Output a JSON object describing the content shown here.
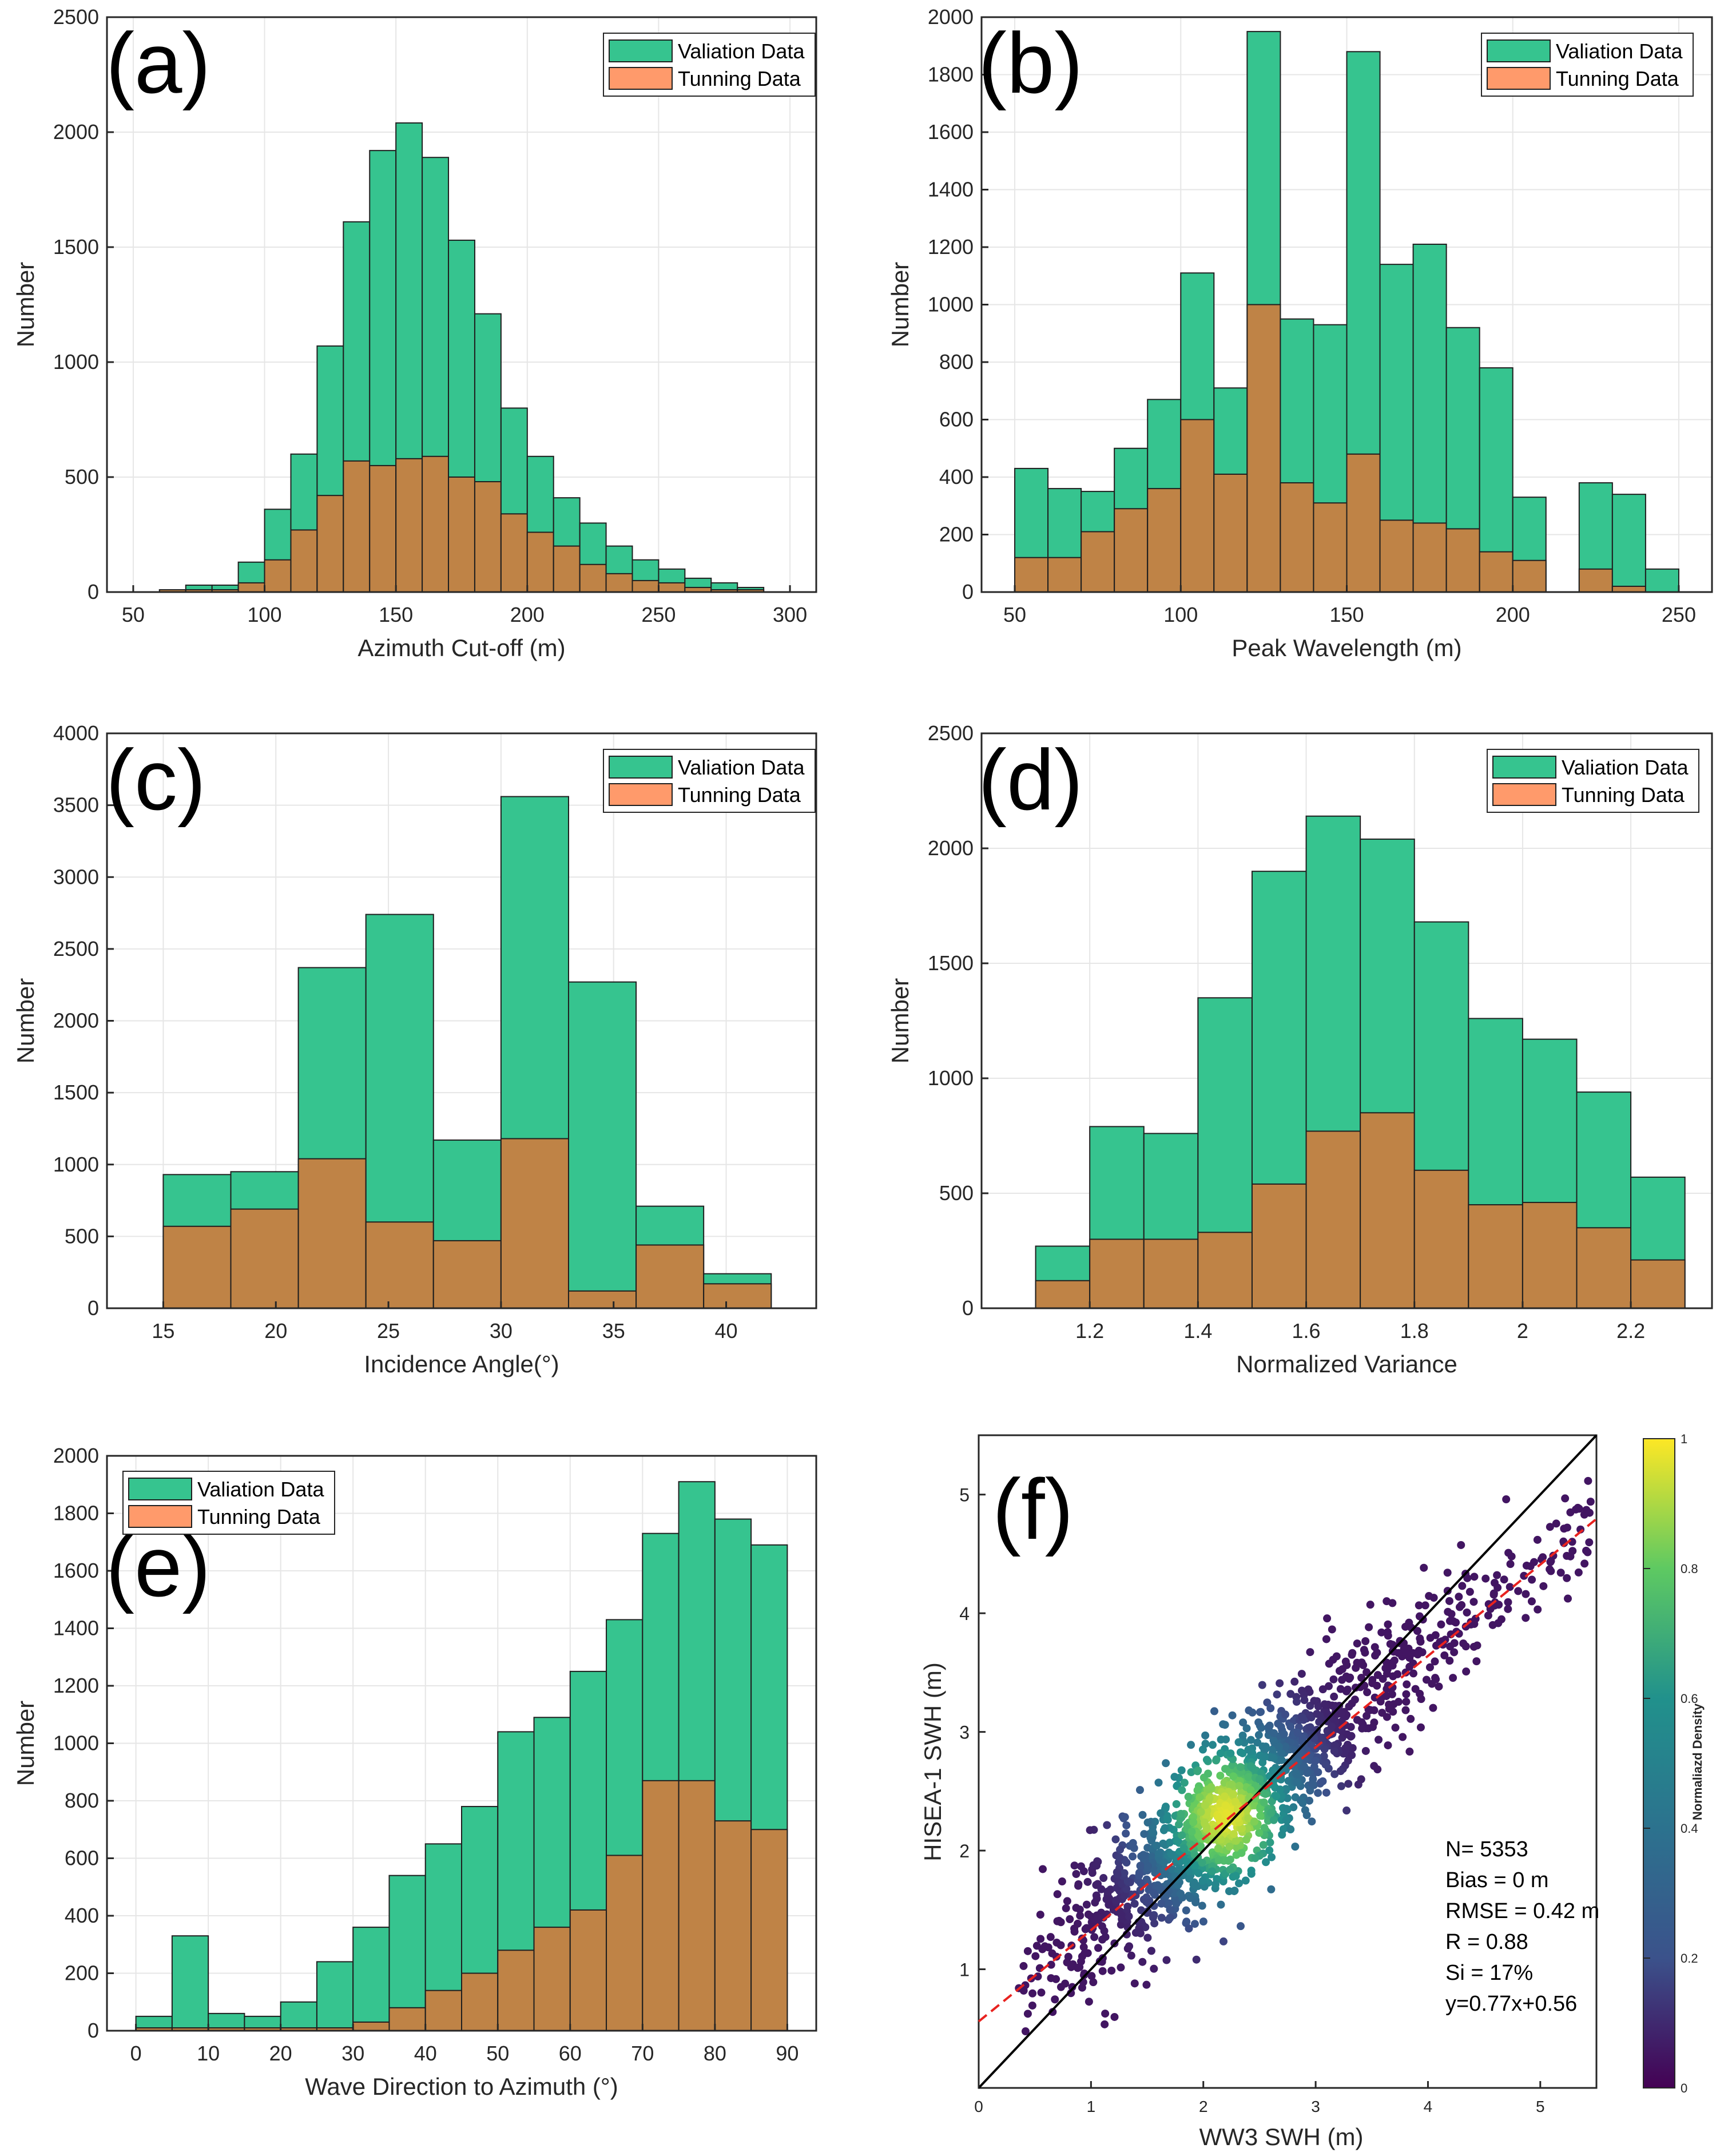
{
  "colors": {
    "validation": "#36C48F",
    "tuning": "#FF9A6B",
    "overlap": "#BF8346",
    "grid": "#e6e6e6",
    "axis": "#262626"
  },
  "chart_data": [
    {
      "id": "a",
      "type": "bar",
      "panel_label": "(a)",
      "xlabel": "Azimuth Cut-off (m)",
      "ylabel": "Number",
      "xlim": [
        40,
        310
      ],
      "ylim": [
        0,
        2500
      ],
      "xticks": [
        50,
        100,
        150,
        200,
        250,
        300
      ],
      "yticks": [
        0,
        500,
        1000,
        1500,
        2000,
        2500
      ],
      "bin_start": 50,
      "bin_width": 10,
      "legend": [
        "Valiation Data",
        "Tunning Data"
      ],
      "series": [
        {
          "name": "Valiation Data",
          "values": [
            0,
            10,
            30,
            30,
            130,
            360,
            600,
            1070,
            1610,
            1920,
            2040,
            1890,
            1530,
            1210,
            800,
            590,
            410,
            300,
            200,
            140,
            100,
            60,
            40,
            20,
            0
          ]
        },
        {
          "name": "Tunning Data",
          "values": [
            0,
            10,
            10,
            10,
            40,
            140,
            270,
            420,
            570,
            550,
            580,
            590,
            500,
            480,
            340,
            260,
            200,
            120,
            80,
            50,
            40,
            20,
            10,
            10,
            0
          ]
        }
      ]
    },
    {
      "id": "b",
      "type": "bar",
      "panel_label": "(b)",
      "xlabel": "Peak Wavelength (m)",
      "ylabel": "Number",
      "xlim": [
        40,
        260
      ],
      "ylim": [
        0,
        2000
      ],
      "xticks": [
        50,
        100,
        150,
        200,
        250
      ],
      "yticks": [
        0,
        200,
        400,
        600,
        800,
        1000,
        1200,
        1400,
        1600,
        1800,
        2000
      ],
      "bin_start": 50,
      "bin_width": 10,
      "legend": [
        "Valiation Data",
        "Tunning Data"
      ],
      "series": [
        {
          "name": "Valiation Data",
          "values": [
            430,
            360,
            350,
            500,
            670,
            1110,
            710,
            1950,
            950,
            930,
            1880,
            1140,
            1210,
            920,
            780,
            330,
            0,
            380,
            340,
            80
          ]
        },
        {
          "name": "Tunning Data",
          "values": [
            120,
            120,
            210,
            290,
            360,
            600,
            410,
            1000,
            380,
            310,
            480,
            250,
            240,
            220,
            140,
            110,
            0,
            80,
            20,
            0
          ]
        }
      ]
    },
    {
      "id": "c",
      "type": "bar",
      "panel_label": "(c)",
      "xlabel": "Incidence Angle(°)",
      "ylabel": "Number",
      "xlim": [
        12.5,
        44
      ],
      "ylim": [
        0,
        4000
      ],
      "xticks": [
        15,
        20,
        25,
        30,
        35,
        40
      ],
      "yticks": [
        0,
        500,
        1000,
        1500,
        2000,
        2500,
        3000,
        3500,
        4000
      ],
      "bin_start": 15,
      "bin_width": 3,
      "legend": [
        "Valiation Data",
        "Tunning Data"
      ],
      "series": [
        {
          "name": "Valiation Data",
          "values": [
            930,
            950,
            2370,
            2740,
            1170,
            3560,
            2270,
            710,
            240
          ]
        },
        {
          "name": "Tunning Data",
          "values": [
            570,
            690,
            1040,
            600,
            470,
            1180,
            120,
            440,
            170
          ]
        }
      ]
    },
    {
      "id": "d",
      "type": "bar",
      "panel_label": "(d)",
      "xlabel": "Normalized Variance",
      "ylabel": "Number",
      "xlim": [
        1.0,
        2.35
      ],
      "ylim": [
        0,
        2500
      ],
      "xticks": [
        1.2,
        1.4,
        1.6,
        1.8,
        2,
        2.2
      ],
      "ytick_labels_x": [
        "1.2",
        "1.4",
        "1.6",
        "1.8",
        "2",
        "2.2"
      ],
      "yticks": [
        0,
        500,
        1000,
        1500,
        2000,
        2500
      ],
      "bin_start": 1.1,
      "bin_width": 0.1,
      "legend": [
        "Valiation Data",
        "Tunning Data"
      ],
      "series": [
        {
          "name": "Valiation Data",
          "values": [
            270,
            790,
            760,
            1350,
            1900,
            2140,
            2040,
            1680,
            1260,
            1170,
            940,
            570
          ]
        },
        {
          "name": "Tunning Data",
          "values": [
            120,
            300,
            300,
            330,
            540,
            770,
            850,
            600,
            450,
            460,
            350,
            210
          ]
        }
      ]
    },
    {
      "id": "e",
      "type": "bar",
      "panel_label": "(e)",
      "xlabel": "Wave Direction to Azimuth (°)",
      "ylabel": "Number",
      "xlim": [
        -4,
        94
      ],
      "ylim": [
        0,
        2000
      ],
      "xticks": [
        0,
        10,
        20,
        30,
        40,
        50,
        60,
        70,
        80,
        90
      ],
      "yticks": [
        0,
        200,
        400,
        600,
        800,
        1000,
        1200,
        1400,
        1600,
        1800,
        2000
      ],
      "bin_start": 0,
      "bin_width": 5,
      "legend": [
        "Valiation Data",
        "Tunning Data"
      ],
      "series": [
        {
          "name": "Valiation Data",
          "values": [
            50,
            330,
            60,
            50,
            100,
            240,
            360,
            540,
            650,
            780,
            1040,
            1090,
            1250,
            1430,
            1730,
            1910,
            1780,
            1690
          ]
        },
        {
          "name": "Tunning Data",
          "values": [
            10,
            10,
            10,
            10,
            10,
            10,
            30,
            80,
            140,
            200,
            280,
            360,
            420,
            610,
            870,
            870,
            730,
            700
          ]
        }
      ]
    },
    {
      "id": "f",
      "type": "scatter",
      "panel_label": "(f)",
      "xlabel": "WW3 SWH (m)",
      "ylabel": "HISEA-1 SWH (m)",
      "xlim": [
        0,
        5.5
      ],
      "ylim": [
        0,
        5.5
      ],
      "xticks": [
        0,
        1,
        2,
        3,
        4,
        5
      ],
      "yticks": [
        1,
        2,
        3,
        4,
        5
      ],
      "fit_line": {
        "slope": 0.77,
        "intercept": 0.56,
        "style": "dashed",
        "color": "#E8221F"
      },
      "identity_line": {
        "slope": 1,
        "intercept": 0,
        "color": "#000000"
      },
      "density_center": [
        2.2,
        2.3
      ],
      "colorbar": {
        "label": "Normaliazd Density",
        "range": [
          0,
          1
        ],
        "ticks": [
          0,
          0.2,
          0.4,
          0.6,
          0.8,
          1
        ]
      },
      "stats": [
        "N= 5353",
        "Bias = 0 m",
        "RMSE = 0.42 m",
        "R = 0.88",
        "Si = 17%",
        "y=0.77x+0.56"
      ]
    }
  ]
}
